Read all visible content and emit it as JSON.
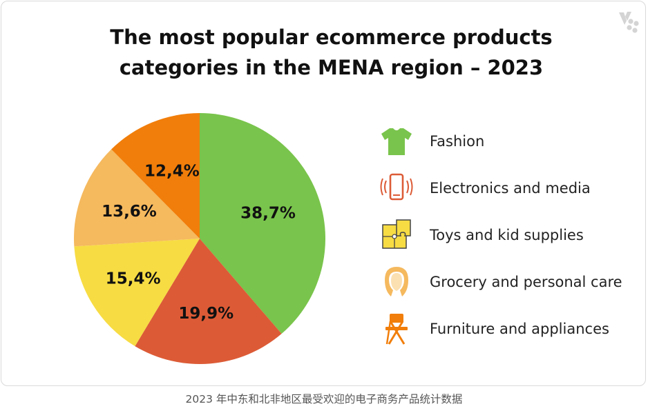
{
  "chart_data": {
    "type": "pie",
    "title": "The most popular ecommerce products categories in the MENA region – 2023",
    "title_lines": [
      "The most popular ecommerce products",
      "categories in the MENA region – 2023"
    ],
    "slices": [
      {
        "name": "Fashion",
        "value": 38.7,
        "label": "38,7%",
        "color": "#79c44c",
        "icon": "tshirt-icon"
      },
      {
        "name": "Electronics and media",
        "value": 19.9,
        "label": "19,9%",
        "color": "#dc5b36",
        "icon": "smartphone-icon"
      },
      {
        "name": "Toys and kid supplies",
        "value": 15.4,
        "label": "15,4%",
        "color": "#f7dc43",
        "icon": "puzzle-icon"
      },
      {
        "name": "Grocery and personal care",
        "value": 13.6,
        "label": "13,6%",
        "color": "#f5b95e",
        "icon": "woman-face-icon"
      },
      {
        "name": "Furniture and appliances",
        "value": 12.4,
        "label": "12,4%",
        "color": "#f17e0a",
        "icon": "folding-chair-icon"
      }
    ],
    "legend_position": "right"
  },
  "caption": "2023 年中东和北非地区最受欢迎的电子商务产品统计数据"
}
